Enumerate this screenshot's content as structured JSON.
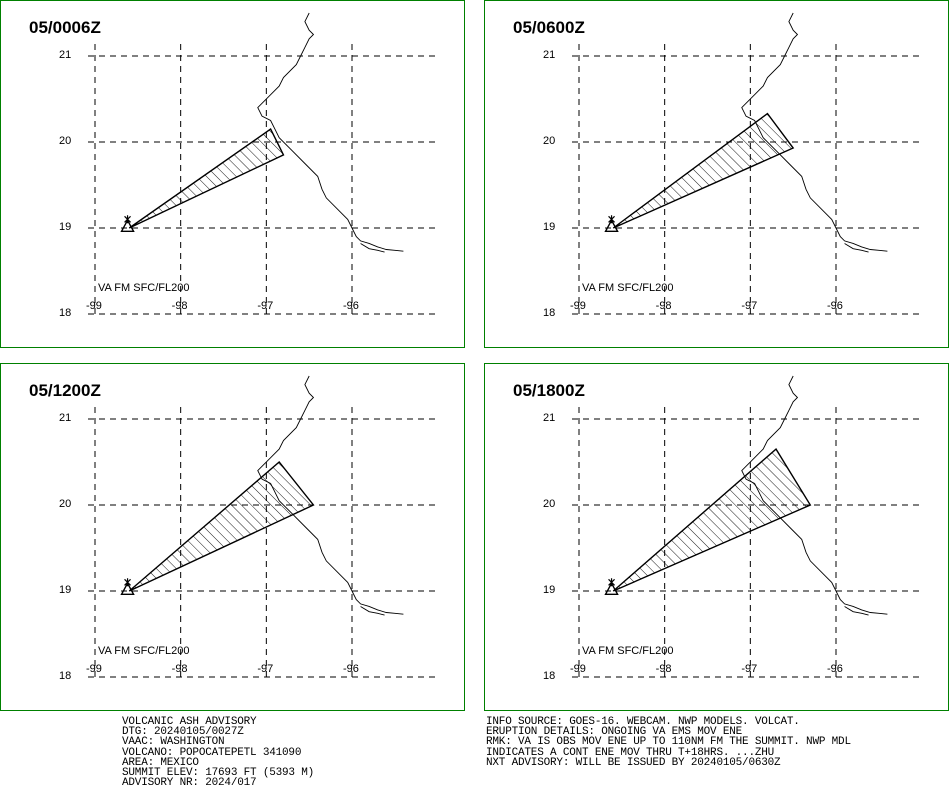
{
  "panels": [
    {
      "time": "05/0006Z",
      "va_label": "VA FM SFC/FL200",
      "polygon": [
        [
          -98.6,
          19.0
        ],
        [
          -96.95,
          20.15
        ],
        [
          -96.8,
          19.85
        ]
      ]
    },
    {
      "time": "05/0600Z",
      "va_label": "VA FM SFC/FL200",
      "polygon": [
        [
          -98.6,
          19.0
        ],
        [
          -96.8,
          20.33
        ],
        [
          -96.5,
          19.93
        ]
      ]
    },
    {
      "time": "05/1200Z",
      "va_label": "VA FM SFC/FL200",
      "polygon": [
        [
          -98.6,
          19.0
        ],
        [
          -96.85,
          20.5
        ],
        [
          -96.45,
          20.0
        ]
      ]
    },
    {
      "time": "05/1800Z",
      "va_label": "VA FM SFC/FL200",
      "polygon": [
        [
          -98.6,
          19.0
        ],
        [
          -96.7,
          20.65
        ],
        [
          -96.3,
          20.0
        ]
      ]
    }
  ],
  "axes": {
    "lon_ticks": [
      "-99",
      "-98",
      "-97",
      "-96"
    ],
    "lat_ticks": [
      "21",
      "20",
      "19",
      "18"
    ],
    "lon_range": [
      -99,
      -95.5
    ],
    "lat_range": [
      18,
      21.5
    ]
  },
  "volcano": {
    "name": "POPOCATEPETL",
    "lon": -98.62,
    "lat": 19.02
  },
  "advisory_left": [
    "VOLCANIC ASH ADVISORY",
    "DTG: 20240105/0027Z",
    "VAAC: WASHINGTON",
    "VOLCANO: POPOCATEPETL 341090",
    "AREA: MEXICO",
    "SUMMIT ELEV: 17693 FT (5393 M)",
    "ADVISORY NR: 2024/017"
  ],
  "advisory_right": [
    "INFO SOURCE: GOES-16. WEBCAM. NWP MODELS. VOLCAT.",
    "ERUPTION DETAILS: ONGOING VA EMS MOV ENE",
    "RMK: VA IS OBS MOV ENE UP TO 110NM FM THE SUMMIT. NWP MDL",
    "INDICATES A CONT ENE MOV THRU T+18HRS. ...ZHU",
    "NXT ADVISORY: WILL BE ISSUED BY 20240105/0630Z"
  ],
  "colors": {
    "frame": "#008000",
    "ink": "#000000",
    "background": "#ffffff"
  }
}
